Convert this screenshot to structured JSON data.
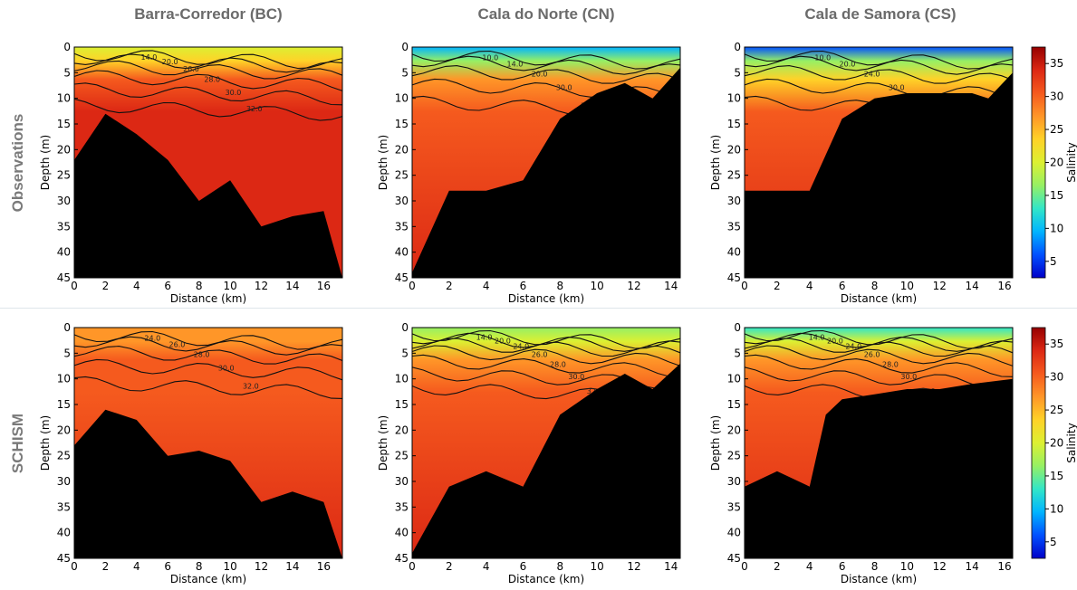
{
  "column_titles": [
    "Barra-Corredor (BC)",
    "Cala do Norte (CN)",
    "Cala de Samora (CS)"
  ],
  "row_titles": [
    "Observations",
    "SCHISM"
  ],
  "colorbar": {
    "label": "Salinity",
    "ticks": [
      5,
      10,
      15,
      20,
      25,
      30,
      35
    ],
    "range": [
      2.5,
      37.5
    ],
    "colors": [
      "#0000c8",
      "#0050ff",
      "#00b4ff",
      "#32e6c8",
      "#96f064",
      "#dcf032",
      "#ffd228",
      "#ff9628",
      "#f55a1e",
      "#dc2814",
      "#960000"
    ]
  },
  "chart_data": [
    {
      "type": "heatmap",
      "panel": "Observations - Barra-Corredor (BC)",
      "xlabel": "Distance (km)",
      "ylabel": "Depth (m)",
      "xlim": [
        0,
        17.2
      ],
      "ylim": [
        45,
        0
      ],
      "xticks": [
        0,
        2,
        4,
        6,
        8,
        10,
        12,
        14,
        16
      ],
      "yticks": [
        0,
        5,
        10,
        15,
        20,
        25,
        30,
        35,
        40,
        45
      ],
      "surface_salinity": 20,
      "bottom_salinity": 34,
      "contours": [
        "14.0",
        "20.0",
        "26.0",
        "28.0",
        "30.0",
        "32.0"
      ],
      "bathymetry": {
        "x": [
          0,
          2,
          4,
          6,
          8,
          10,
          12,
          14,
          16,
          17.2
        ],
        "depth": [
          22,
          13,
          17,
          22,
          30,
          26,
          35,
          33,
          32,
          45
        ]
      }
    },
    {
      "type": "heatmap",
      "panel": "Observations - Cala do Norte (CN)",
      "xlabel": "Distance (km)",
      "ylabel": "Depth (m)",
      "xlim": [
        0,
        14.5
      ],
      "ylim": [
        45,
        0
      ],
      "xticks": [
        0,
        2,
        4,
        6,
        8,
        10,
        12,
        14
      ],
      "yticks": [
        0,
        5,
        10,
        15,
        20,
        25,
        30,
        35,
        40,
        45
      ],
      "surface_salinity": 10,
      "bottom_salinity": 33,
      "contours": [
        "10.0",
        "14.0",
        "20.0",
        "30.0",
        "32.0"
      ],
      "bathymetry": {
        "x": [
          0,
          2,
          4,
          6,
          8,
          10,
          11.5,
          13,
          14.5
        ],
        "depth": [
          44,
          28,
          28,
          26,
          14,
          9,
          7,
          10,
          4
        ]
      }
    },
    {
      "type": "heatmap",
      "panel": "Observations - Cala de Samora (CS)",
      "xlabel": "Distance (km)",
      "ylabel": "Depth (m)",
      "xlim": [
        0,
        16.5
      ],
      "ylim": [
        45,
        0
      ],
      "xticks": [
        0,
        2,
        4,
        6,
        8,
        10,
        12,
        14,
        16
      ],
      "yticks": [
        0,
        5,
        10,
        15,
        20,
        25,
        30,
        35,
        40,
        45
      ],
      "surface_salinity": 6,
      "bottom_salinity": 33,
      "contours": [
        "10.0",
        "20.0",
        "24.0",
        "30.0",
        "32.0"
      ],
      "bathymetry": {
        "x": [
          0,
          4,
          6,
          8,
          10,
          12,
          14,
          15,
          16.5
        ],
        "depth": [
          28,
          28,
          14,
          10,
          9,
          9,
          9,
          10,
          5
        ]
      }
    },
    {
      "type": "heatmap",
      "panel": "SCHISM - Barra-Corredor (BC)",
      "xlabel": "Distance (km)",
      "ylabel": "Depth (m)",
      "xlim": [
        0,
        17.2
      ],
      "ylim": [
        45,
        0
      ],
      "xticks": [
        0,
        2,
        4,
        6,
        8,
        10,
        12,
        14,
        16
      ],
      "yticks": [
        0,
        5,
        10,
        15,
        20,
        25,
        30,
        35,
        40,
        45
      ],
      "surface_salinity": 26,
      "bottom_salinity": 33,
      "contours": [
        "24.0",
        "26.0",
        "28.0",
        "30.0",
        "32.0"
      ],
      "bathymetry": {
        "x": [
          0,
          2,
          4,
          6,
          8,
          10,
          12,
          14,
          16,
          17.2
        ],
        "depth": [
          23,
          16,
          18,
          25,
          24,
          26,
          34,
          32,
          34,
          45
        ]
      }
    },
    {
      "type": "heatmap",
      "panel": "SCHISM - Cala do Norte (CN)",
      "xlabel": "Distance (km)",
      "ylabel": "Depth (m)",
      "xlim": [
        0,
        14.5
      ],
      "ylim": [
        45,
        0
      ],
      "xticks": [
        0,
        2,
        4,
        6,
        8,
        10,
        12,
        14
      ],
      "yticks": [
        0,
        5,
        10,
        15,
        20,
        25,
        30,
        35,
        40,
        45
      ],
      "surface_salinity": 15,
      "bottom_salinity": 33,
      "contours": [
        "14.0",
        "20.0",
        "24.0",
        "26.0",
        "28.0",
        "30.0",
        "32.0"
      ],
      "bathymetry": {
        "x": [
          0,
          2,
          4,
          6,
          8,
          10,
          11.5,
          13,
          14.5
        ],
        "depth": [
          44,
          31,
          28,
          31,
          17,
          12,
          9,
          12,
          7
        ]
      }
    },
    {
      "type": "heatmap",
      "panel": "SCHISM - Cala de Samora (CS)",
      "xlabel": "Distance (km)",
      "ylabel": "Depth (m)",
      "xlim": [
        0,
        16.5
      ],
      "ylim": [
        45,
        0
      ],
      "xticks": [
        0,
        2,
        4,
        6,
        8,
        10,
        12,
        14,
        16
      ],
      "yticks": [
        0,
        5,
        10,
        15,
        20,
        25,
        30,
        35,
        40,
        45
      ],
      "surface_salinity": 14,
      "bottom_salinity": 33,
      "contours": [
        "14.0",
        "20.0",
        "24.0",
        "26.0",
        "28.0",
        "30.0",
        "32.0"
      ],
      "bathymetry": {
        "x": [
          0,
          2,
          4,
          5,
          6,
          8,
          10,
          12,
          14,
          16.5
        ],
        "depth": [
          31,
          28,
          31,
          17,
          14,
          13,
          12,
          12,
          11,
          10
        ]
      }
    }
  ]
}
